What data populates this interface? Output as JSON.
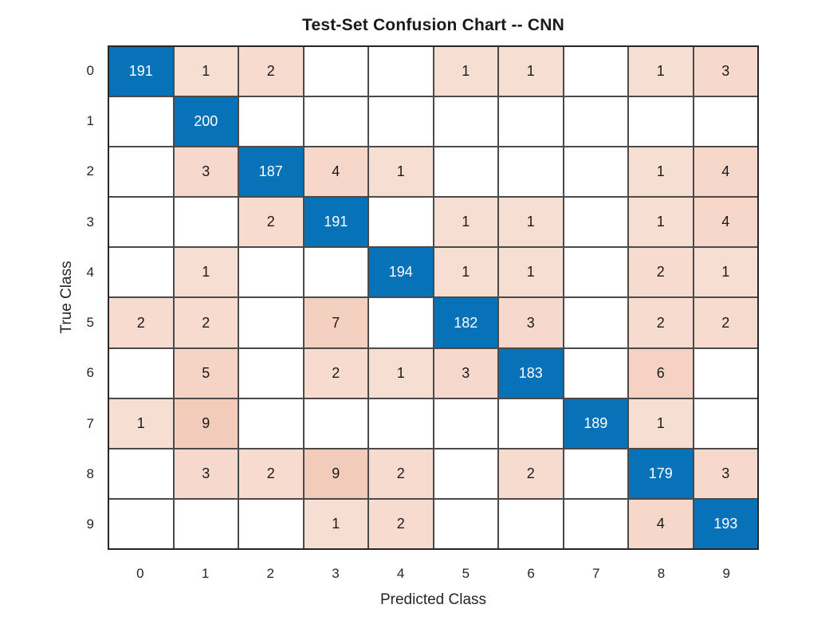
{
  "title": "Test-Set Confusion Chart -- CNN",
  "axes": {
    "x_label": "Predicted Class",
    "y_label": "True Class",
    "x_ticks": [
      "0",
      "1",
      "2",
      "3",
      "4",
      "5",
      "6",
      "7",
      "8",
      "9"
    ],
    "y_ticks": [
      "0",
      "1",
      "2",
      "3",
      "4",
      "5",
      "6",
      "7",
      "8",
      "9"
    ]
  },
  "colors": {
    "diagonal": "#0872b9",
    "off_diagonal_base": "#d85218",
    "grid_line": "#4a4a4a",
    "outer_border": "#262626",
    "cell_text_dark": "#1a1a1a",
    "cell_text_light": "#ffffff",
    "background": "#ffffff"
  },
  "chart_data": {
    "type": "heatmap",
    "title": "Test-Set Confusion Chart -- CNN",
    "xlabel": "Predicted Class",
    "ylabel": "True Class",
    "x_categories": [
      "0",
      "1",
      "2",
      "3",
      "4",
      "5",
      "6",
      "7",
      "8",
      "9"
    ],
    "y_categories": [
      "0",
      "1",
      "2",
      "3",
      "4",
      "5",
      "6",
      "7",
      "8",
      "9"
    ],
    "legend": "none",
    "grid": "on",
    "matrix": [
      [
        191,
        1,
        2,
        0,
        0,
        1,
        1,
        0,
        1,
        3
      ],
      [
        0,
        200,
        0,
        0,
        0,
        0,
        0,
        0,
        0,
        0
      ],
      [
        0,
        3,
        187,
        4,
        1,
        0,
        0,
        0,
        1,
        4
      ],
      [
        0,
        0,
        2,
        191,
        0,
        1,
        1,
        0,
        1,
        4
      ],
      [
        0,
        1,
        0,
        0,
        194,
        1,
        1,
        0,
        2,
        1
      ],
      [
        2,
        2,
        0,
        7,
        0,
        182,
        3,
        0,
        2,
        2
      ],
      [
        0,
        5,
        0,
        2,
        1,
        3,
        183,
        0,
        6,
        0
      ],
      [
        1,
        9,
        0,
        0,
        0,
        0,
        0,
        189,
        1,
        0
      ],
      [
        0,
        3,
        2,
        9,
        2,
        0,
        2,
        0,
        179,
        3
      ],
      [
        0,
        0,
        0,
        1,
        2,
        0,
        0,
        0,
        4,
        193
      ]
    ]
  }
}
